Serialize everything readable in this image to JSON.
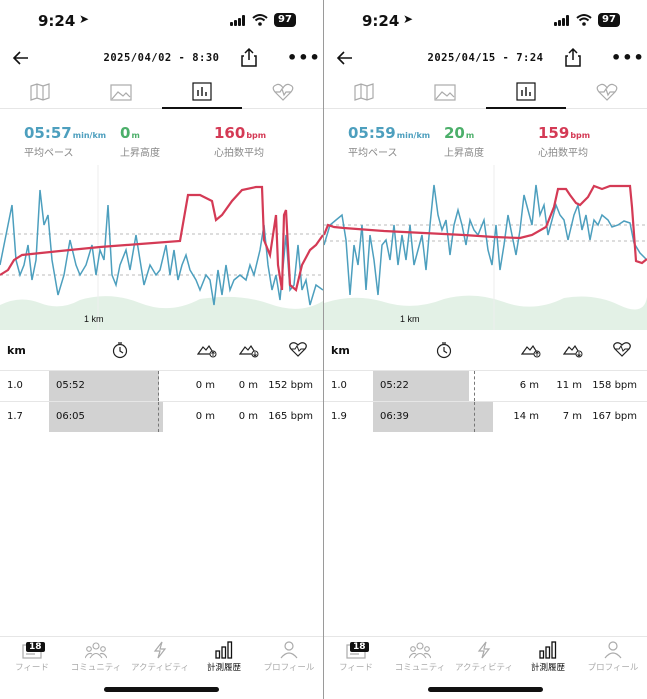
{
  "colors": {
    "pace": "#4d9fbe",
    "elevation": "#4caf6a",
    "heart": "#d43a55",
    "bar": "#d2d2d2",
    "terrain": "#e3f1e6"
  },
  "status": {
    "time": "9:24",
    "battery": "97"
  },
  "tabs": [
    "map-icon",
    "photo-icon",
    "chart-icon",
    "heart-icon"
  ],
  "stat_labels": {
    "pace": "平均ペース",
    "elevation": "上昇高度",
    "heart": "心拍数平均"
  },
  "units": {
    "pace": "min/km",
    "elevation": "m",
    "heart": "bpm"
  },
  "table_header": {
    "km": "km"
  },
  "chart_axis": {
    "distance": "1 km"
  },
  "left": {
    "date": "2025/04/02 - 8:30",
    "pace": "05:57",
    "elevation": "0",
    "heart": "160",
    "splits": [
      {
        "km": "1.0",
        "pace": "05:52",
        "pace_fraction": 0.73,
        "ascent": "0 m",
        "descent": "0 m",
        "hr": "152 bpm"
      },
      {
        "km": "1.7",
        "pace": "06:05",
        "pace_fraction": 0.76,
        "ascent": "0 m",
        "descent": "0 m",
        "hr": "165 bpm"
      }
    ]
  },
  "right": {
    "date": "2025/04/15 - 7:24",
    "pace": "05:59",
    "elevation": "20",
    "heart": "159",
    "splits": [
      {
        "km": "1.0",
        "pace": "05:22",
        "pace_fraction": 0.64,
        "ascent": "6 m",
        "descent": "11 m",
        "hr": "158 bpm"
      },
      {
        "km": "1.9",
        "pace": "06:39",
        "pace_fraction": 0.8,
        "ascent": "14 m",
        "descent": "7 m",
        "hr": "167 bpm"
      }
    ]
  },
  "tabbar": {
    "items": [
      {
        "label": "フィード",
        "icon": "feed-icon",
        "badge": "18"
      },
      {
        "label": "コミュニティ",
        "icon": "community-icon"
      },
      {
        "label": "アクティビティ",
        "icon": "activity-icon"
      },
      {
        "label": "計測履歴",
        "icon": "history-icon",
        "active": true
      },
      {
        "label": "プロフィール",
        "icon": "profile-icon"
      }
    ]
  }
}
